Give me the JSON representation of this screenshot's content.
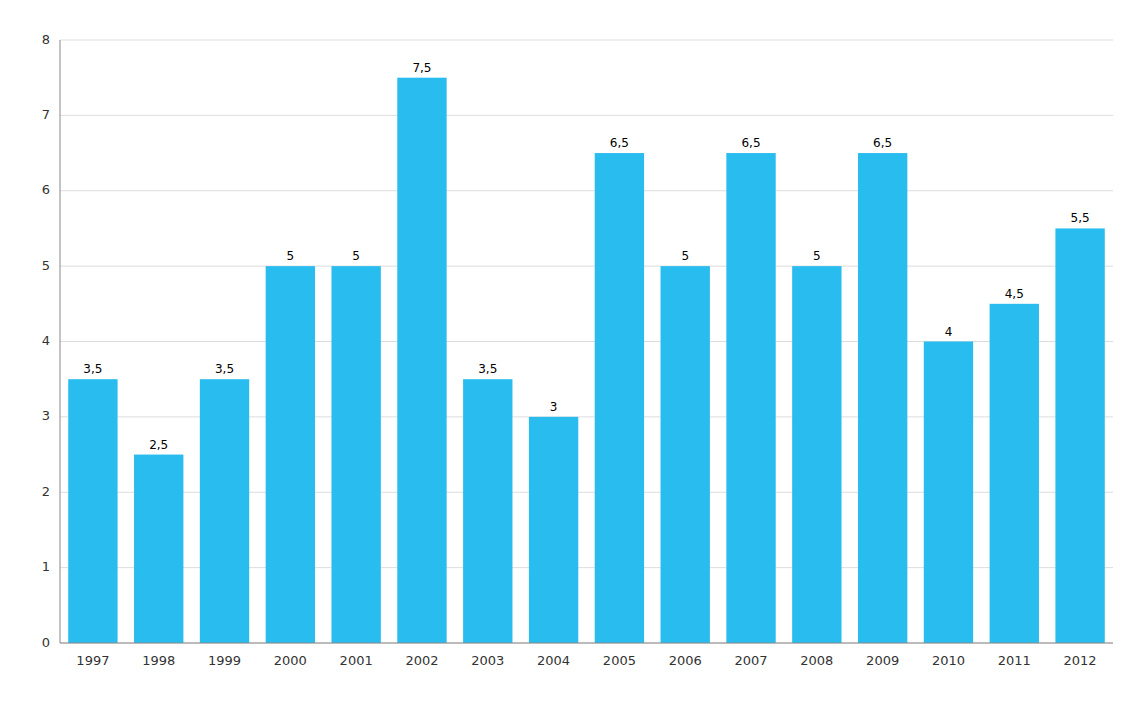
{
  "chart_data": {
    "type": "bar",
    "categories": [
      "1997",
      "1998",
      "1999",
      "2000",
      "2001",
      "2002",
      "2003",
      "2004",
      "2005",
      "2006",
      "2007",
      "2008",
      "2009",
      "2010",
      "2011",
      "2012"
    ],
    "values": [
      3.5,
      2.5,
      3.5,
      5.0,
      5.0,
      7.5,
      3.5,
      3.0,
      6.5,
      5.0,
      6.5,
      5.0,
      6.5,
      4.0,
      4.5,
      5.5
    ],
    "value_labels": [
      "3,5",
      "2,5",
      "3,5",
      "5",
      "5",
      "7,5",
      "3,5",
      "3",
      "6,5",
      "5",
      "6,5",
      "5",
      "6,5",
      "4",
      "4,5",
      "5,5"
    ],
    "color": "#29BCEE",
    "ylim": [
      0,
      8
    ],
    "yticks": [
      0,
      1,
      2,
      3,
      4,
      5,
      6,
      7,
      8
    ],
    "grid": true,
    "data_labels": true
  }
}
